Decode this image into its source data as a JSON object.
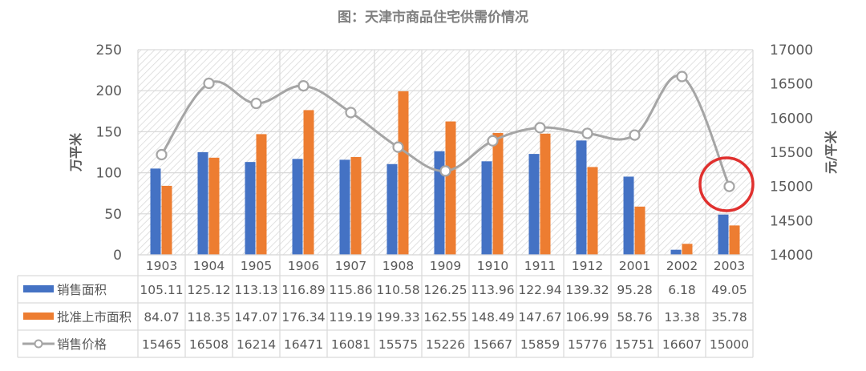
{
  "chart_data": {
    "type": "bar+line",
    "title": "图：天津市商品住宅供需价情况",
    "categories": [
      "1903",
      "1904",
      "1905",
      "1906",
      "1907",
      "1908",
      "1909",
      "1910",
      "1911",
      "1912",
      "2001",
      "2002",
      "2003"
    ],
    "series": [
      {
        "name": "销售面积",
        "type": "bar",
        "axis": "left",
        "color": "#4472c4",
        "values": [
          105.11,
          125.12,
          113.13,
          116.89,
          115.86,
          110.58,
          126.25,
          113.96,
          122.94,
          139.32,
          95.28,
          6.18,
          49.05
        ]
      },
      {
        "name": "批准上市面积",
        "type": "bar",
        "axis": "left",
        "color": "#ed7d31",
        "values": [
          84.07,
          118.35,
          147.07,
          176.34,
          119.19,
          199.33,
          162.55,
          148.49,
          147.67,
          106.99,
          58.76,
          13.38,
          35.78
        ]
      },
      {
        "name": "销售价格",
        "type": "line",
        "axis": "right",
        "color": "#a5a5a5",
        "marker": "hollow-circle",
        "smooth": true,
        "values": [
          15465,
          16508,
          16214,
          16471,
          16081,
          15575,
          15226,
          15667,
          15859,
          15776,
          15751,
          16607,
          15000
        ]
      }
    ],
    "ylabel": "万平米",
    "ylabel_right": "元/平米",
    "ylim": [
      0,
      250
    ],
    "ylim_right": [
      14000,
      17000
    ],
    "yticks": [
      0,
      50,
      100,
      150,
      200,
      250
    ],
    "yticks_right": [
      14000,
      14500,
      15000,
      15500,
      16000,
      16500,
      17000
    ],
    "grid": true,
    "background": "diagonal-hatch",
    "data_table": true,
    "annotations": [
      {
        "type": "red-circle",
        "target": "2003 销售价格",
        "color": "#e0302e"
      }
    ]
  }
}
